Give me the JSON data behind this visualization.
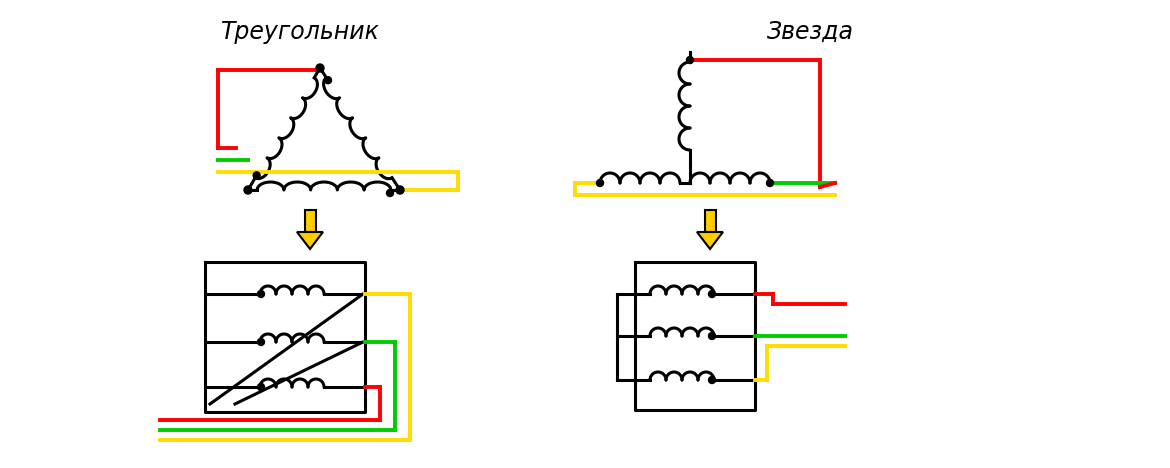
{
  "title_left": "Треугольник",
  "title_right": "Звезда",
  "bg_color": "#ffffff",
  "red": "#ff0000",
  "green": "#00cc00",
  "yellow": "#ffdd00",
  "black": "#000000",
  "arrow_color": "#ffcc00",
  "lw_wire": 2.8,
  "lw_coil": 2.2
}
